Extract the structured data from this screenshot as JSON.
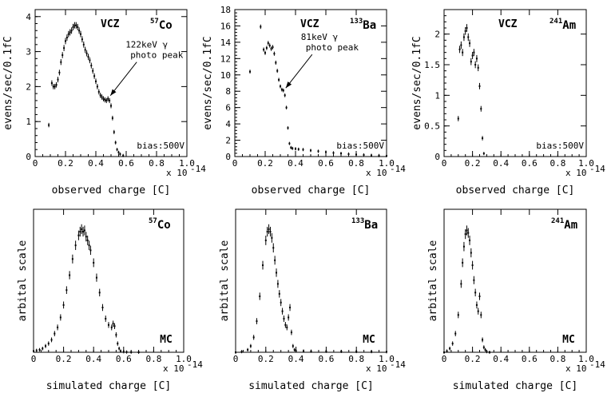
{
  "chart_data": [
    {
      "type": "scatter",
      "panel": "top-left",
      "xlabel": "observed charge [C]",
      "ylabel": "evens/sec/0.1fC",
      "x_multiplier": "x 10",
      "x_exponent": "-14",
      "xlim": [
        0,
        1.0
      ],
      "ylim": [
        0,
        4.2
      ],
      "xticks": [
        "0",
        "0.2",
        "0.4",
        "0.6",
        "0.8",
        "1.0"
      ],
      "yticks": [
        "0",
        "1",
        "2",
        "3",
        "4"
      ],
      "tag": "VCZ",
      "isotope_mass": "57",
      "isotope_symbol": "Co",
      "bias": "bias:500V",
      "annotation_line1": "122keV γ",
      "annotation_line2": "photo peak",
      "annotation_xy": [
        0.48,
        1.65
      ],
      "x": [
        0.09,
        0.11,
        0.12,
        0.13,
        0.14,
        0.15,
        0.16,
        0.17,
        0.18,
        0.19,
        0.2,
        0.21,
        0.22,
        0.23,
        0.24,
        0.25,
        0.26,
        0.27,
        0.28,
        0.29,
        0.3,
        0.31,
        0.32,
        0.33,
        0.34,
        0.35,
        0.36,
        0.37,
        0.38,
        0.39,
        0.4,
        0.41,
        0.42,
        0.43,
        0.44,
        0.45,
        0.46,
        0.47,
        0.48,
        0.49,
        0.5,
        0.51,
        0.52,
        0.53,
        0.54,
        0.55,
        0.56,
        0.58
      ],
      "y": [
        0.9,
        2.1,
        2.0,
        2.0,
        2.05,
        2.2,
        2.4,
        2.7,
        2.9,
        3.1,
        3.3,
        3.4,
        3.5,
        3.55,
        3.6,
        3.7,
        3.75,
        3.75,
        3.7,
        3.6,
        3.5,
        3.35,
        3.2,
        3.05,
        2.95,
        2.85,
        2.75,
        2.6,
        2.45,
        2.3,
        2.15,
        2.0,
        1.85,
        1.75,
        1.7,
        1.65,
        1.62,
        1.6,
        1.65,
        1.6,
        1.45,
        1.1,
        0.7,
        0.4,
        0.2,
        0.12,
        0.07,
        0.03
      ]
    },
    {
      "type": "scatter",
      "panel": "top-middle",
      "xlabel": "observed charge [C]",
      "ylabel": "evens/sec/0.1fC",
      "x_multiplier": "x 10",
      "x_exponent": "-14",
      "xlim": [
        0,
        1.0
      ],
      "ylim": [
        0,
        18
      ],
      "xticks": [
        "0",
        "0.2",
        "0.4",
        "0.6",
        "0.8",
        "1.0"
      ],
      "yticks": [
        "0",
        "2",
        "4",
        "6",
        "8",
        "10",
        "12",
        "14",
        "16",
        "18"
      ],
      "tag": "VCZ",
      "isotope_mass": "133",
      "isotope_symbol": "Ba",
      "bias": "bias:500V",
      "annotation_line1": "81keV γ",
      "annotation_line2": "photo peak",
      "annotation_xy": [
        0.32,
        8.0
      ],
      "x": [
        0.1,
        0.17,
        0.19,
        0.2,
        0.21,
        0.22,
        0.23,
        0.24,
        0.25,
        0.26,
        0.27,
        0.28,
        0.29,
        0.3,
        0.31,
        0.32,
        0.33,
        0.34,
        0.35,
        0.36,
        0.37,
        0.38,
        0.4,
        0.42,
        0.45,
        0.5,
        0.55,
        0.6,
        0.65,
        0.7,
        0.75,
        0.8,
        0.85,
        0.9,
        0.95,
        1.0
      ],
      "y": [
        10.4,
        15.9,
        13.1,
        12.7,
        13.3,
        13.9,
        13.6,
        13.2,
        13.4,
        12.6,
        11.5,
        10.5,
        9.4,
        8.6,
        8.2,
        8.1,
        7.5,
        6.0,
        3.5,
        1.6,
        1.1,
        1.0,
        0.95,
        0.9,
        0.85,
        0.75,
        0.65,
        0.55,
        0.45,
        0.38,
        0.3,
        0.25,
        0.2,
        0.15,
        0.12,
        0.1
      ]
    },
    {
      "type": "scatter",
      "panel": "top-right",
      "xlabel": "observed charge [C]",
      "ylabel": "evens/sec/0.1fC",
      "x_multiplier": "x 10",
      "x_exponent": "-14",
      "xlim": [
        0,
        1.0
      ],
      "ylim": [
        0,
        2.4
      ],
      "xticks": [
        "0",
        "0.2",
        "0.4",
        "0.6",
        "0.8",
        "1.0"
      ],
      "yticks": [
        "0",
        "0.5",
        "1",
        "1.5",
        "2"
      ],
      "tag": "VCZ",
      "isotope_mass": "241",
      "isotope_symbol": "Am",
      "bias": "bias:500V",
      "x": [
        0.1,
        0.11,
        0.12,
        0.13,
        0.14,
        0.15,
        0.16,
        0.17,
        0.18,
        0.19,
        0.2,
        0.21,
        0.22,
        0.23,
        0.24,
        0.25,
        0.26,
        0.27,
        0.28
      ],
      "y": [
        0.62,
        1.75,
        1.82,
        1.7,
        1.95,
        2.05,
        2.1,
        1.95,
        1.85,
        1.55,
        1.65,
        1.7,
        1.5,
        1.6,
        1.45,
        1.15,
        0.78,
        0.3,
        0.05
      ]
    },
    {
      "type": "scatter",
      "panel": "bottom-left",
      "xlabel": "simulated charge [C]",
      "ylabel": "arbital scale",
      "x_multiplier": "x 10",
      "x_exponent": "-14",
      "xlim": [
        0,
        1.0
      ],
      "ylim": [
        0,
        1.15
      ],
      "xticks": [
        "0",
        "0.2",
        "0.4",
        "0.6",
        "0.8",
        "1.0"
      ],
      "yticks": [],
      "tag": "MC",
      "isotope_mass": "57",
      "isotope_symbol": "Co",
      "x": [
        0.0,
        0.02,
        0.04,
        0.06,
        0.08,
        0.1,
        0.12,
        0.14,
        0.16,
        0.18,
        0.2,
        0.22,
        0.24,
        0.26,
        0.28,
        0.3,
        0.31,
        0.32,
        0.33,
        0.34,
        0.35,
        0.36,
        0.37,
        0.38,
        0.4,
        0.42,
        0.44,
        0.46,
        0.48,
        0.5,
        0.52,
        0.53,
        0.54,
        0.55,
        0.56,
        0.57,
        0.58,
        0.6,
        0.62,
        0.65,
        0.7
      ],
      "y": [
        0.01,
        0.015,
        0.02,
        0.03,
        0.05,
        0.07,
        0.1,
        0.15,
        0.2,
        0.28,
        0.38,
        0.5,
        0.62,
        0.75,
        0.86,
        0.94,
        0.97,
        0.99,
        0.97,
        0.98,
        0.93,
        0.9,
        0.86,
        0.82,
        0.72,
        0.6,
        0.48,
        0.36,
        0.27,
        0.22,
        0.2,
        0.23,
        0.21,
        0.14,
        0.07,
        0.03,
        0.01,
        0.004,
        0.002,
        0.001,
        0.0
      ]
    },
    {
      "type": "scatter",
      "panel": "bottom-middle",
      "xlabel": "simulated charge [C]",
      "ylabel": "arbital scale",
      "x_multiplier": "x 10",
      "x_exponent": "-14",
      "xlim": [
        0,
        1.0
      ],
      "ylim": [
        0,
        1.15
      ],
      "xticks": [
        "0",
        "0.2",
        "0.4",
        "0.6",
        "0.8",
        "1.0"
      ],
      "yticks": [],
      "tag": "MC",
      "isotope_mass": "133",
      "isotope_symbol": "Ba",
      "x": [
        0.0,
        0.04,
        0.08,
        0.1,
        0.12,
        0.14,
        0.16,
        0.18,
        0.2,
        0.21,
        0.22,
        0.23,
        0.24,
        0.25,
        0.26,
        0.27,
        0.28,
        0.29,
        0.3,
        0.31,
        0.32,
        0.33,
        0.34,
        0.35,
        0.36,
        0.37,
        0.38,
        0.39,
        0.4,
        0.45,
        0.5,
        0.6,
        0.7,
        0.8,
        0.9,
        1.0
      ],
      "y": [
        0.0,
        0.005,
        0.02,
        0.05,
        0.12,
        0.25,
        0.45,
        0.7,
        0.9,
        0.97,
        0.99,
        0.97,
        0.92,
        0.84,
        0.74,
        0.64,
        0.55,
        0.47,
        0.4,
        0.33,
        0.27,
        0.22,
        0.2,
        0.28,
        0.36,
        0.16,
        0.05,
        0.02,
        0.012,
        0.01,
        0.009,
        0.008,
        0.007,
        0.006,
        0.005,
        0.004
      ]
    },
    {
      "type": "scatter",
      "panel": "bottom-right",
      "xlabel": "simulated charge [C]",
      "ylabel": "arbital scale",
      "x_multiplier": "x 10",
      "x_exponent": "-14",
      "xlim": [
        0,
        1.0
      ],
      "ylim": [
        0,
        1.15
      ],
      "xticks": [
        "0",
        "0.2",
        "0.4",
        "0.6",
        "0.8",
        "1.0"
      ],
      "yticks": [],
      "tag": "MC",
      "isotope_mass": "241",
      "isotope_symbol": "Am",
      "x": [
        0.0,
        0.02,
        0.04,
        0.06,
        0.08,
        0.1,
        0.12,
        0.13,
        0.14,
        0.15,
        0.16,
        0.17,
        0.18,
        0.19,
        0.2,
        0.21,
        0.22,
        0.23,
        0.24,
        0.25,
        0.26,
        0.27,
        0.28,
        0.29,
        0.3,
        0.32
      ],
      "y": [
        0.0,
        0.01,
        0.03,
        0.07,
        0.15,
        0.3,
        0.55,
        0.72,
        0.85,
        0.95,
        0.98,
        0.96,
        0.9,
        0.8,
        0.7,
        0.58,
        0.48,
        0.38,
        0.33,
        0.45,
        0.3,
        0.1,
        0.04,
        0.02,
        0.005,
        0.0
      ]
    }
  ]
}
